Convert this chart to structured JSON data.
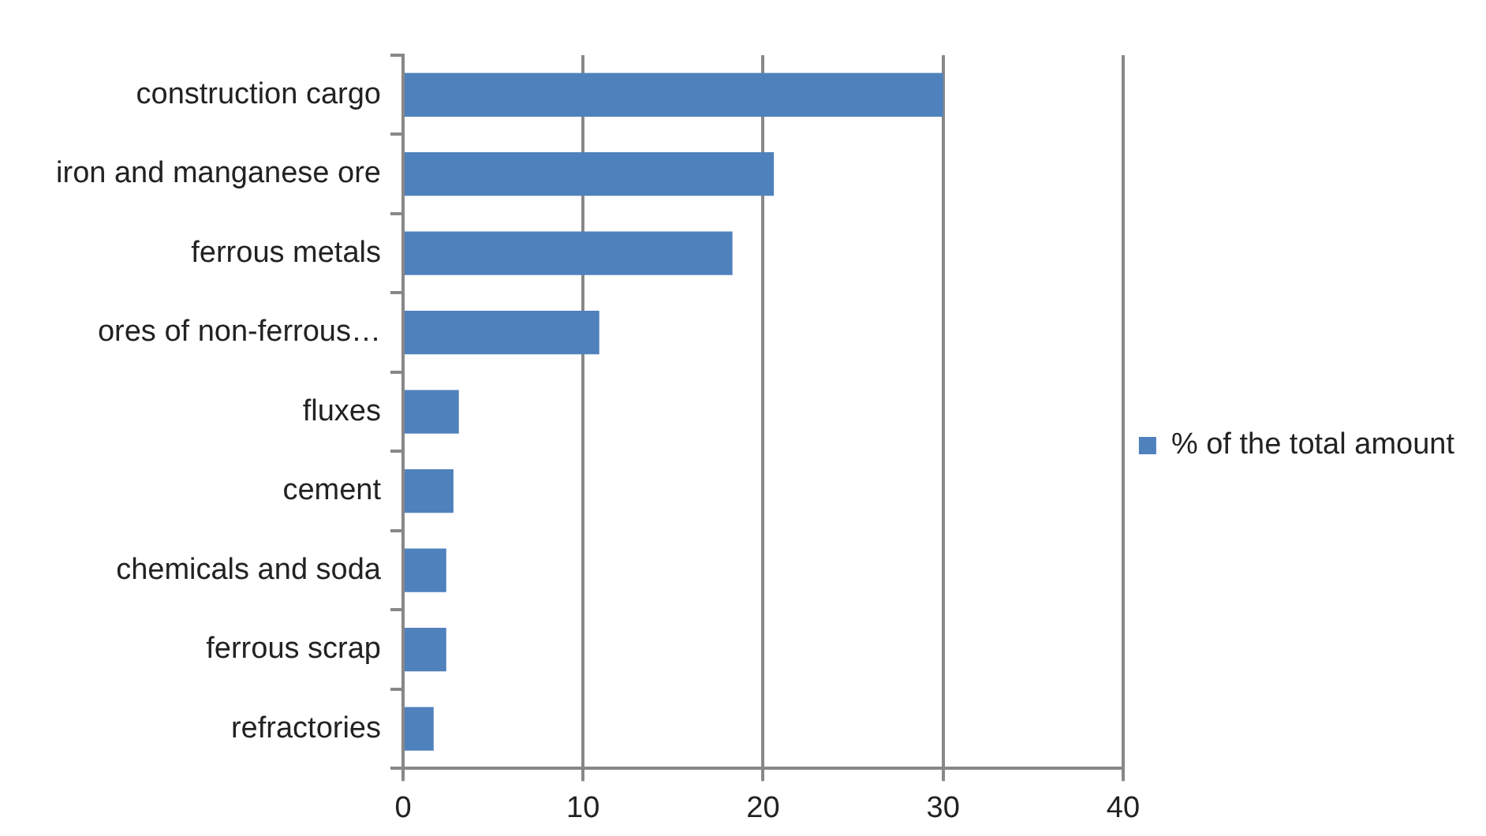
{
  "chart_data": {
    "type": "bar",
    "orientation": "horizontal",
    "categories": [
      "construction cargo",
      "iron and manganese ore",
      "ferrous metals",
      "ores of non-ferrous…",
      "fluxes",
      "cement",
      "chemicals and soda",
      "ferrous scrap",
      "refractories"
    ],
    "series": [
      {
        "name": "% of the total amount",
        "color": "#4f81bd",
        "values": [
          30.0,
          20.6,
          18.3,
          10.9,
          3.1,
          2.8,
          2.4,
          2.4,
          1.7
        ]
      }
    ],
    "xlim": [
      0,
      40
    ],
    "xticks": [
      0,
      10,
      20,
      30,
      40
    ],
    "grid": "x",
    "legend": "right"
  }
}
